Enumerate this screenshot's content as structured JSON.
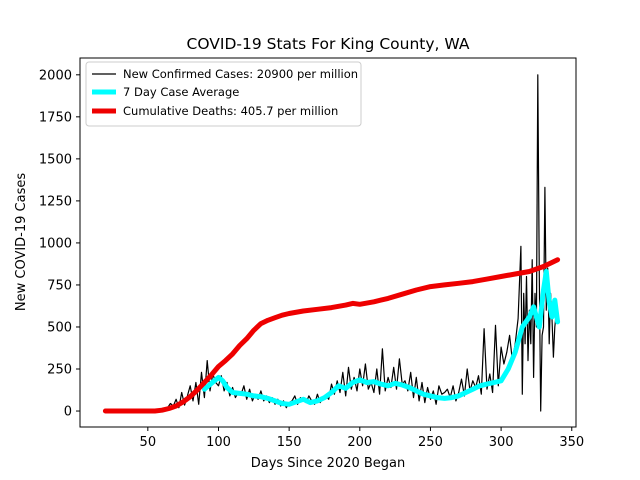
{
  "chart_data": {
    "type": "line",
    "title": "COVID-19 Stats For King County, WA",
    "xlabel": "Days Since 2020 Began",
    "ylabel": "New COVID-19 Cases",
    "xlim": [
      2,
      353
    ],
    "ylim": [
      -95,
      2100
    ],
    "xticks": [
      50,
      100,
      150,
      200,
      250,
      300,
      350
    ],
    "yticks": [
      0,
      250,
      500,
      750,
      1000,
      1250,
      1500,
      1750,
      2000
    ],
    "grid": false,
    "legend_position": "top-left",
    "series": [
      {
        "name": "New Confirmed Cases: 20900 per million",
        "color": "#000000",
        "style": "thin",
        "x": [
          20,
          25,
          30,
          35,
          40,
          45,
          50,
          55,
          60,
          62,
          64,
          66,
          68,
          70,
          72,
          74,
          76,
          78,
          80,
          82,
          84,
          86,
          88,
          90,
          92,
          94,
          96,
          98,
          100,
          102,
          104,
          106,
          108,
          110,
          112,
          114,
          116,
          118,
          120,
          122,
          124,
          126,
          128,
          130,
          132,
          134,
          136,
          138,
          140,
          142,
          144,
          146,
          148,
          150,
          152,
          154,
          156,
          158,
          160,
          162,
          164,
          166,
          168,
          170,
          172,
          174,
          176,
          178,
          180,
          182,
          184,
          186,
          188,
          190,
          192,
          194,
          196,
          198,
          200,
          202,
          204,
          206,
          208,
          210,
          212,
          214,
          216,
          218,
          220,
          222,
          224,
          226,
          228,
          230,
          232,
          234,
          236,
          238,
          240,
          242,
          244,
          246,
          248,
          250,
          252,
          254,
          256,
          258,
          260,
          262,
          264,
          266,
          268,
          270,
          272,
          274,
          276,
          278,
          280,
          282,
          284,
          286,
          288,
          290,
          292,
          294,
          296,
          298,
          300,
          302,
          304,
          306,
          308,
          310,
          312,
          314,
          315,
          316,
          317,
          318,
          319,
          320,
          321,
          322,
          323,
          324,
          325,
          326,
          327,
          328,
          329,
          330,
          331,
          332,
          333,
          334,
          335,
          336,
          337,
          338,
          339,
          340
        ],
        "y": [
          0,
          0,
          0,
          0,
          0,
          0,
          0,
          0,
          2,
          8,
          20,
          45,
          30,
          70,
          20,
          110,
          35,
          90,
          150,
          60,
          170,
          40,
          230,
          80,
          300,
          120,
          220,
          170,
          150,
          210,
          120,
          170,
          90,
          140,
          80,
          110,
          100,
          150,
          70,
          130,
          60,
          100,
          70,
          120,
          60,
          90,
          50,
          80,
          40,
          70,
          30,
          60,
          20,
          50,
          60,
          90,
          40,
          80,
          70,
          50,
          90,
          60,
          40,
          100,
          50,
          80,
          90,
          70,
          160,
          100,
          180,
          110,
          230,
          90,
          260,
          130,
          200,
          120,
          250,
          150,
          280,
          130,
          170,
          110,
          250,
          100,
          370,
          120,
          200,
          140,
          260,
          130,
          310,
          160,
          180,
          120,
          230,
          80,
          200,
          60,
          170,
          50,
          140,
          70,
          120,
          40,
          150,
          100,
          110,
          130,
          80,
          150,
          60,
          110,
          190,
          90,
          250,
          120,
          180,
          140,
          210,
          100,
          490,
          130,
          220,
          110,
          510,
          150,
          380,
          280,
          350,
          450,
          300,
          400,
          550,
          980,
          100,
          700,
          400,
          800,
          300,
          600,
          400,
          900,
          200,
          700,
          500,
          2000,
          800,
          0,
          450,
          500,
          1330,
          600,
          850,
          400,
          700,
          550,
          320,
          500,
          580,
          560
        ]
      },
      {
        "name": "7 Day Case Average",
        "color": "#00ffff",
        "style": "thick",
        "x": [
          90,
          95,
          100,
          103,
          106,
          110,
          115,
          120,
          125,
          130,
          135,
          140,
          145,
          150,
          155,
          160,
          165,
          170,
          175,
          180,
          185,
          190,
          195,
          200,
          205,
          210,
          215,
          220,
          225,
          230,
          235,
          240,
          245,
          250,
          255,
          260,
          265,
          270,
          275,
          280,
          285,
          290,
          295,
          300,
          305,
          310,
          315,
          320,
          323,
          325,
          327,
          330,
          332,
          334,
          336,
          338,
          340
        ],
        "y": [
          130,
          165,
          200,
          180,
          140,
          110,
          105,
          100,
          90,
          85,
          75,
          60,
          45,
          40,
          55,
          70,
          50,
          60,
          80,
          110,
          150,
          135,
          170,
          185,
          170,
          175,
          160,
          150,
          165,
          155,
          140,
          120,
          100,
          90,
          80,
          75,
          80,
          90,
          110,
          130,
          150,
          160,
          170,
          180,
          250,
          350,
          500,
          560,
          620,
          560,
          500,
          720,
          830,
          650,
          560,
          660,
          530
        ]
      },
      {
        "name": "Cumulative Deaths: 405.7 per million",
        "color": "#ee0000",
        "style": "thick",
        "x": [
          20,
          30,
          40,
          50,
          55,
          60,
          65,
          70,
          75,
          80,
          85,
          90,
          95,
          100,
          105,
          110,
          115,
          120,
          125,
          130,
          135,
          140,
          145,
          150,
          160,
          170,
          180,
          190,
          195,
          200,
          210,
          220,
          230,
          240,
          250,
          260,
          270,
          280,
          290,
          300,
          310,
          320,
          330,
          335,
          340
        ],
        "y": [
          0,
          0,
          0,
          0,
          0,
          5,
          15,
          30,
          55,
          85,
          125,
          170,
          215,
          265,
          300,
          340,
          390,
          430,
          480,
          520,
          540,
          555,
          570,
          580,
          595,
          605,
          615,
          630,
          640,
          635,
          650,
          670,
          695,
          720,
          740,
          750,
          760,
          770,
          785,
          800,
          815,
          830,
          860,
          880,
          900
        ]
      }
    ]
  }
}
